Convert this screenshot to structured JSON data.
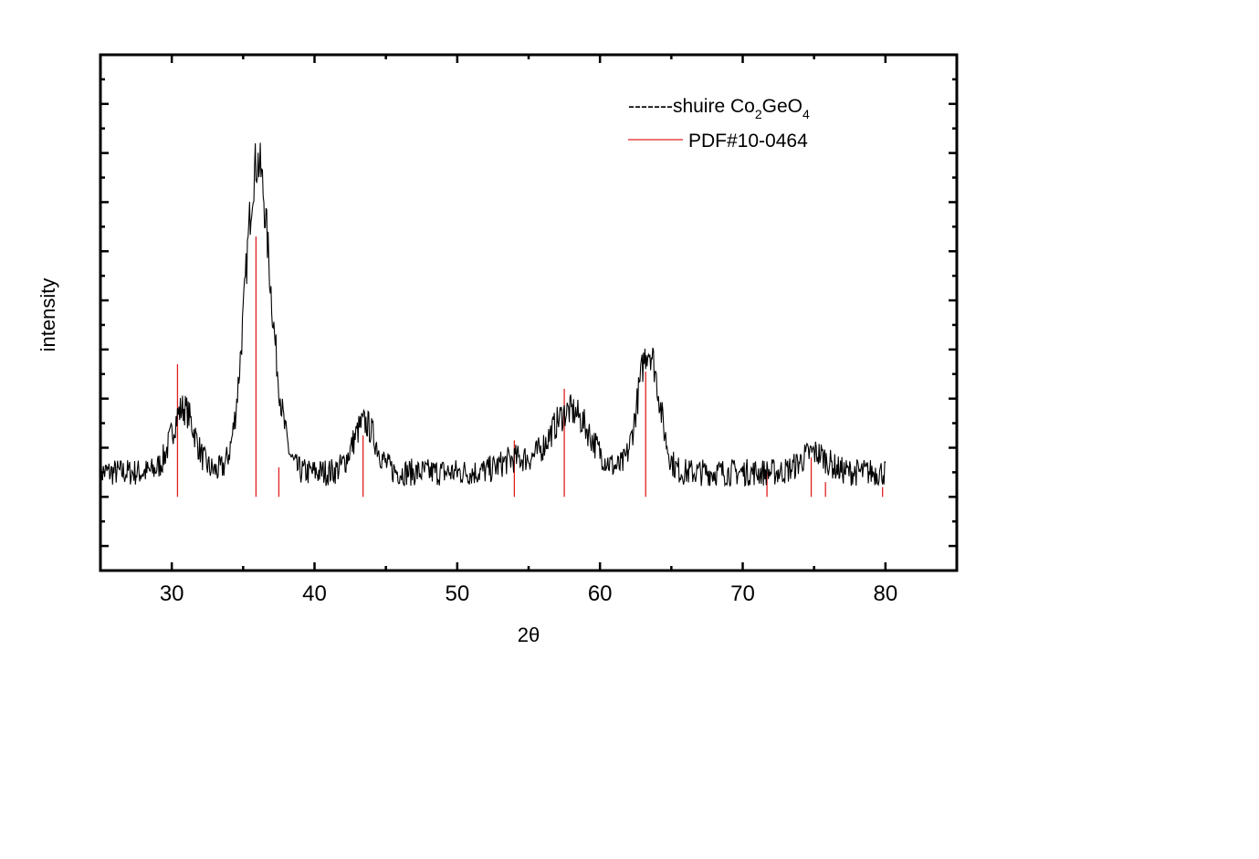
{
  "chart_data": {
    "type": "line",
    "xlabel": "2θ",
    "ylabel": "intensity",
    "xlim": [
      25,
      85
    ],
    "ylim": [
      -0.5,
      10
    ],
    "x_ticks": [
      30,
      40,
      50,
      60,
      70,
      80
    ],
    "grid": false,
    "legend_position": "top-right",
    "legend": {
      "measured_prefix": "-------shuire Co",
      "measured_sub1": "2",
      "measured_mid": "GeO",
      "measured_sub2": "4",
      "reference_label": "PDF#10-0464"
    },
    "series": [
      {
        "name": "shuire Co2GeO4",
        "color": "#000000",
        "kind": "noisy-profile",
        "x_range": [
          25,
          80
        ],
        "step": 0.05,
        "baseline": 1.5,
        "noise_amplitude": 0.28,
        "peaks": [
          {
            "center": 30.8,
            "height": 1.3,
            "width": 0.8
          },
          {
            "center": 36.0,
            "height": 6.3,
            "width": 0.85
          },
          {
            "center": 37.5,
            "height": 0.5,
            "width": 0.6
          },
          {
            "center": 43.5,
            "height": 1.0,
            "width": 0.8
          },
          {
            "center": 54.0,
            "height": 0.25,
            "width": 1.0
          },
          {
            "center": 57.9,
            "height": 1.25,
            "width": 1.4
          },
          {
            "center": 63.4,
            "height": 2.5,
            "width": 0.75
          },
          {
            "center": 75.0,
            "height": 0.4,
            "width": 0.9
          }
        ]
      },
      {
        "name": "PDF#10-0464",
        "color": "#e02020",
        "kind": "stick",
        "baseline": 1.0,
        "sticks": [
          {
            "x": 30.4,
            "y": 3.7
          },
          {
            "x": 35.9,
            "y": 6.3
          },
          {
            "x": 37.5,
            "y": 1.6
          },
          {
            "x": 43.4,
            "y": 2.25
          },
          {
            "x": 54.0,
            "y": 2.15
          },
          {
            "x": 57.5,
            "y": 3.2
          },
          {
            "x": 63.2,
            "y": 3.55
          },
          {
            "x": 71.7,
            "y": 1.5
          },
          {
            "x": 74.8,
            "y": 1.8
          },
          {
            "x": 75.8,
            "y": 1.3
          },
          {
            "x": 79.8,
            "y": 1.2
          }
        ]
      }
    ]
  }
}
